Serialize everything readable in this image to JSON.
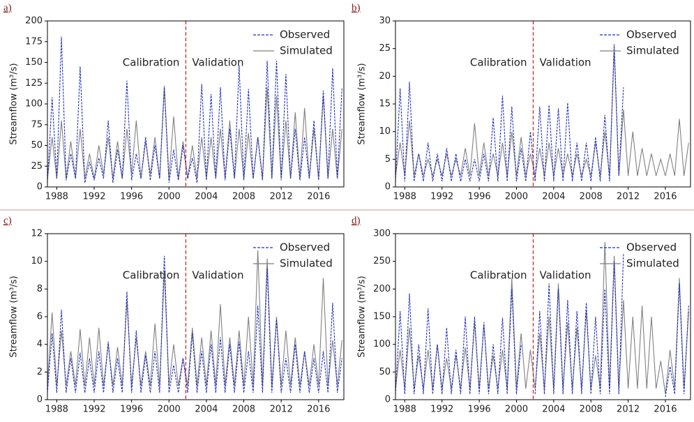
{
  "chart_data": [
    {
      "type": "line",
      "panel_label": "a)",
      "y_label": "Streamflow (m³/s)",
      "annotations": [
        "Calibration",
        "Validation"
      ],
      "vline_x": 2001.8,
      "x": [
        1987,
        1987.5,
        1988,
        1988.5,
        1989,
        1989.5,
        1990,
        1990.5,
        1991,
        1991.5,
        1992,
        1992.5,
        1993,
        1993.5,
        1994,
        1994.5,
        1995,
        1995.5,
        1996,
        1996.5,
        1997,
        1997.5,
        1998,
        1998.5,
        1999,
        1999.5,
        2000,
        2000.5,
        2001,
        2001.5,
        2002,
        2002.5,
        2003,
        2003.5,
        2004,
        2004.5,
        2005,
        2005.5,
        2006,
        2006.5,
        2007,
        2007.5,
        2008,
        2008.5,
        2009,
        2009.5,
        2010,
        2010.5,
        2011,
        2011.5,
        2012,
        2012.5,
        2013,
        2013.5,
        2014,
        2014.5,
        2015,
        2015.5,
        2016,
        2016.5,
        2017,
        2017.5,
        2018,
        2018.5
      ],
      "series": [
        {
          "name": "Observed",
          "color": "#1f2fbf",
          "dashed": true,
          "values": [
            5,
            108,
            10,
            181,
            8,
            40,
            10,
            145,
            5,
            30,
            8,
            35,
            10,
            80,
            5,
            45,
            10,
            128,
            8,
            40,
            10,
            60,
            8,
            50,
            10,
            120,
            5,
            45,
            8,
            50,
            10,
            35,
            5,
            124,
            8,
            112,
            10,
            120,
            8,
            70,
            10,
            146,
            8,
            118,
            10,
            60,
            8,
            152,
            10,
            152,
            8,
            136,
            10,
            70,
            8,
            60,
            10,
            80,
            8,
            116,
            10,
            143,
            10,
            119
          ]
        },
        {
          "name": "Simulated",
          "color": "#808080",
          "dashed": false,
          "values": [
            10,
            60,
            10,
            80,
            10,
            55,
            10,
            70,
            10,
            40,
            10,
            50,
            15,
            60,
            10,
            55,
            10,
            70,
            15,
            80,
            10,
            55,
            15,
            60,
            10,
            122,
            10,
            85,
            10,
            55,
            10,
            50,
            10,
            60,
            10,
            60,
            10,
            70,
            10,
            80,
            10,
            70,
            10,
            65,
            10,
            60,
            10,
            120,
            10,
            110,
            10,
            80,
            10,
            90,
            10,
            95,
            10,
            70,
            10,
            110,
            10,
            70,
            10,
            70
          ]
        }
      ],
      "xlim": [
        1987,
        2018.7
      ],
      "ylim": [
        0,
        200
      ],
      "xticks": [
        1988,
        1992,
        1996,
        2000,
        2004,
        2008,
        2012,
        2016
      ],
      "yticks": [
        0,
        25,
        50,
        75,
        100,
        125,
        150,
        175,
        200
      ]
    },
    {
      "type": "line",
      "panel_label": "b)",
      "y_label": "Streamflow (m³/s)",
      "annotations": [
        "Calibration",
        "Validation"
      ],
      "vline_x": 2001.8,
      "x": [
        1987,
        1987.5,
        1988,
        1988.5,
        1989,
        1989.5,
        1990,
        1990.5,
        1991,
        1991.5,
        1992,
        1992.5,
        1993,
        1993.5,
        1994,
        1994.5,
        1995,
        1995.5,
        1996,
        1996.5,
        1997,
        1997.5,
        1998,
        1998.5,
        1999,
        1999.5,
        2000,
        2000.5,
        2001,
        2001.5,
        2002,
        2002.5,
        2003,
        2003.5,
        2004,
        2004.5,
        2005,
        2005.5,
        2006,
        2006.5,
        2007,
        2007.5,
        2008,
        2008.5,
        2009,
        2009.5,
        2010,
        2010.5,
        2011,
        2011.5,
        2012,
        2012.5,
        2013,
        2013.5,
        2014,
        2014.5,
        2015,
        2015.5,
        2016,
        2016.5,
        2017,
        2017.5,
        2018,
        2018.5
      ],
      "series": [
        {
          "name": "Observed",
          "color": "#1f2fbf",
          "dashed": true,
          "values": [
            1,
            17.8,
            1,
            19,
            1,
            6,
            1,
            8,
            1,
            6,
            1,
            7,
            1,
            6,
            1,
            5,
            1,
            5,
            1,
            6,
            1,
            12.5,
            1,
            16.5,
            1,
            14.5,
            1,
            7,
            1,
            10,
            1,
            14.5,
            1,
            14.8,
            1,
            14.2,
            1,
            15.2,
            1,
            8,
            1,
            8,
            1,
            9,
            1,
            13,
            1,
            25.8,
            2,
            18,
            null,
            null,
            null,
            null,
            null,
            null,
            null,
            null,
            null,
            null,
            null,
            null,
            null,
            null
          ]
        },
        {
          "name": "Simulated",
          "color": "#808080",
          "dashed": false,
          "values": [
            2,
            8,
            2,
            12,
            2,
            6,
            2,
            5,
            2,
            5,
            2,
            6,
            2,
            5,
            2,
            7,
            2,
            11.5,
            2,
            8,
            2,
            6,
            2,
            8,
            2,
            10,
            2,
            9,
            2,
            6,
            2,
            7,
            2,
            8,
            2,
            7,
            2,
            6,
            2,
            6,
            2,
            5,
            2,
            8,
            2,
            10,
            2,
            25,
            2,
            14,
            2,
            10,
            2,
            7,
            2,
            6,
            2,
            5,
            2,
            6,
            2,
            12.3,
            2,
            8
          ]
        }
      ],
      "xlim": [
        1987,
        2018.7
      ],
      "ylim": [
        0,
        30
      ],
      "xticks": [
        1988,
        1992,
        1996,
        2000,
        2004,
        2008,
        2012,
        2016
      ],
      "yticks": [
        0,
        5,
        10,
        15,
        20,
        25,
        30
      ]
    },
    {
      "type": "line",
      "panel_label": "c)",
      "y_label": "Streamflow (m³/s)",
      "annotations": [
        "Calibration",
        "Validation"
      ],
      "vline_x": 2001.8,
      "x": [
        1987,
        1987.5,
        1988,
        1988.5,
        1989,
        1989.5,
        1990,
        1990.5,
        1991,
        1991.5,
        1992,
        1992.5,
        1993,
        1993.5,
        1994,
        1994.5,
        1995,
        1995.5,
        1996,
        1996.5,
        1997,
        1997.5,
        1998,
        1998.5,
        1999,
        1999.5,
        2000,
        2000.5,
        2001,
        2001.5,
        2002,
        2002.5,
        2003,
        2003.5,
        2004,
        2004.5,
        2005,
        2005.5,
        2006,
        2006.5,
        2007,
        2007.5,
        2008,
        2008.5,
        2009,
        2009.5,
        2010,
        2010.5,
        2011,
        2011.5,
        2012,
        2012.5,
        2013,
        2013.5,
        2014,
        2014.5,
        2015,
        2015.5,
        2016,
        2016.5,
        2017,
        2017.5,
        2018,
        2018.5
      ],
      "series": [
        {
          "name": "Observed",
          "color": "#1f2fbf",
          "dashed": true,
          "values": [
            0.5,
            4.8,
            0.5,
            6.5,
            0.5,
            3,
            0.5,
            3.4,
            0.5,
            3,
            0.5,
            3.5,
            0.5,
            4.2,
            0.5,
            3,
            0.5,
            7.8,
            0.5,
            5,
            0.5,
            3.2,
            0.5,
            3.5,
            0.5,
            10.4,
            0.5,
            2.5,
            0.5,
            3,
            0.5,
            4.8,
            0.5,
            3.5,
            0.5,
            4,
            0.5,
            4.5,
            0.5,
            4,
            0.5,
            4.2,
            0.5,
            3.5,
            0.5,
            6.8,
            0.5,
            9.5,
            0.5,
            5.8,
            0.5,
            3,
            0.5,
            4,
            0.5,
            3.5,
            0.5,
            3,
            0.5,
            3.5,
            0.5,
            7,
            0.5,
            3
          ]
        },
        {
          "name": "Simulated",
          "color": "#808080",
          "dashed": false,
          "values": [
            1,
            6.3,
            1,
            5,
            1,
            3.5,
            1,
            5.1,
            1,
            4.5,
            1,
            5.2,
            1,
            4,
            1,
            3.8,
            1,
            7.2,
            1,
            4.5,
            1,
            3.5,
            1,
            5.5,
            1,
            9.3,
            1,
            4,
            1,
            3,
            1,
            5.2,
            1,
            4.5,
            1,
            5,
            1,
            6.9,
            1,
            4.5,
            1,
            5,
            1,
            6,
            1,
            10.8,
            1,
            10.2,
            1,
            6,
            1,
            5,
            1,
            4.5,
            1,
            3.5,
            1,
            4,
            1,
            8.8,
            1,
            4.3,
            1,
            4.3
          ]
        }
      ],
      "xlim": [
        1987,
        2018.7
      ],
      "ylim": [
        0,
        12
      ],
      "xticks": [
        1988,
        1992,
        1996,
        2000,
        2004,
        2008,
        2012,
        2016
      ],
      "yticks": [
        0,
        2,
        4,
        6,
        8,
        10,
        12
      ]
    },
    {
      "type": "line",
      "panel_label": "d)",
      "y_label": "Streamflow (m³/s)",
      "annotations": [
        "Calibration",
        "Validation"
      ],
      "vline_x": 2001.8,
      "x": [
        1987,
        1987.5,
        1988,
        1988.5,
        1989,
        1989.5,
        1990,
        1990.5,
        1991,
        1991.5,
        1992,
        1992.5,
        1993,
        1993.5,
        1994,
        1994.5,
        1995,
        1995.5,
        1996,
        1996.5,
        1997,
        1997.5,
        1998,
        1998.5,
        1999,
        1999.5,
        2000,
        2000.5,
        2001,
        2001.5,
        2002,
        2002.5,
        2003,
        2003.5,
        2004,
        2004.5,
        2005,
        2005.5,
        2006,
        2006.5,
        2007,
        2007.5,
        2008,
        2008.5,
        2009,
        2009.5,
        2010,
        2010.5,
        2011,
        2011.5,
        2012,
        2012.5,
        2013,
        2013.5,
        2014,
        2014.5,
        2015,
        2015.5,
        2016,
        2016.5,
        2017,
        2017.5,
        2018,
        2018.5
      ],
      "series": [
        {
          "name": "Observed",
          "color": "#1f2fbf",
          "dashed": true,
          "values": [
            10,
            160,
            10,
            192,
            10,
            100,
            10,
            165,
            10,
            100,
            10,
            130,
            10,
            90,
            10,
            150,
            10,
            150,
            10,
            140,
            10,
            100,
            10,
            148,
            10,
            200,
            10,
            100,
            null,
            null,
            10,
            160,
            10,
            210,
            10,
            200,
            10,
            180,
            10,
            160,
            10,
            175,
            10,
            150,
            10,
            200,
            10,
            250,
            10,
            265,
            null,
            null,
            null,
            null,
            null,
            null,
            null,
            null,
            5,
            60,
            10,
            210,
            10,
            170
          ]
        },
        {
          "name": "Simulated",
          "color": "#808080",
          "dashed": false,
          "values": [
            20,
            90,
            20,
            130,
            20,
            80,
            20,
            90,
            20,
            100,
            20,
            75,
            20,
            80,
            20,
            95,
            20,
            140,
            20,
            135,
            20,
            80,
            20,
            90,
            20,
            220,
            20,
            120,
            20,
            90,
            20,
            120,
            20,
            150,
            20,
            210,
            20,
            140,
            20,
            130,
            20,
            160,
            20,
            80,
            20,
            285,
            20,
            260,
            20,
            180,
            20,
            150,
            20,
            170,
            20,
            150,
            20,
            70,
            10,
            90,
            20,
            220,
            20,
            160
          ]
        }
      ],
      "xlim": [
        1987,
        2018.7
      ],
      "ylim": [
        0,
        300
      ],
      "xticks": [
        1988,
        1992,
        1996,
        2000,
        2004,
        2008,
        2012,
        2016
      ],
      "yticks": [
        0,
        50,
        100,
        150,
        200,
        250,
        300
      ]
    }
  ]
}
